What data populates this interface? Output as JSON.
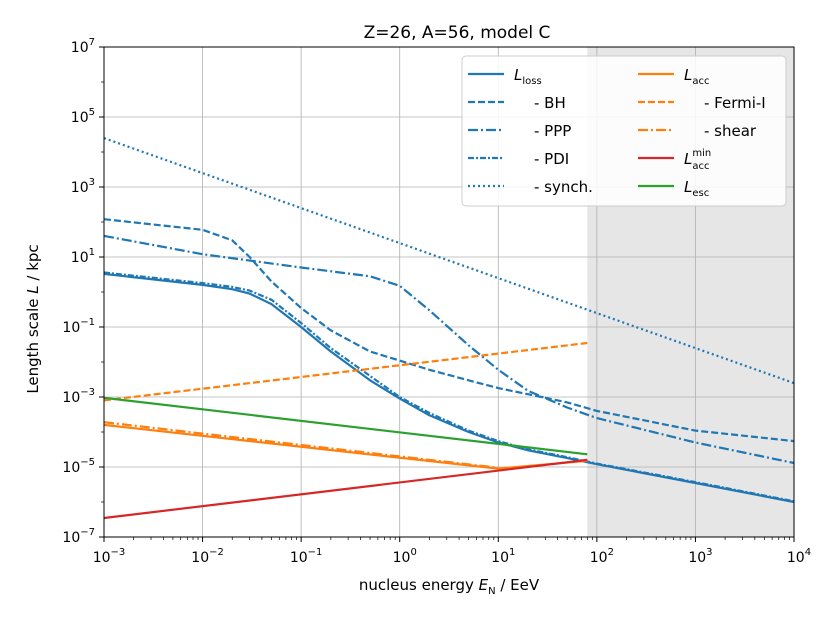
{
  "chart_data": {
    "type": "line",
    "title": "Z=26, A=56, model C",
    "xlabel": {
      "pre": "nucleus energy ",
      "var": "E",
      "sub": "N",
      "post": " / EeV"
    },
    "ylabel": {
      "pre": "Length scale ",
      "var": "L",
      "post": " / kpc"
    },
    "xscale": "log",
    "yscale": "log",
    "xlim": [
      0.001,
      10000
    ],
    "ylim": [
      1e-07,
      10000000.0
    ],
    "grid": true,
    "x_ticks": [
      {
        "value": 0.001,
        "base": "10",
        "exp": "−3"
      },
      {
        "value": 0.01,
        "base": "10",
        "exp": "−2"
      },
      {
        "value": 0.1,
        "base": "10",
        "exp": "−1"
      },
      {
        "value": 1,
        "base": "10",
        "exp": "0"
      },
      {
        "value": 10,
        "base": "10",
        "exp": "1"
      },
      {
        "value": 100,
        "base": "10",
        "exp": "2"
      },
      {
        "value": 1000,
        "base": "10",
        "exp": "3"
      },
      {
        "value": 10000,
        "base": "10",
        "exp": "4"
      }
    ],
    "y_ticks": [
      {
        "value": 1e-07,
        "base": "10",
        "exp": "−7"
      },
      {
        "value": 1e-05,
        "base": "10",
        "exp": "−5"
      },
      {
        "value": 0.001,
        "base": "10",
        "exp": "−3"
      },
      {
        "value": 0.1,
        "base": "10",
        "exp": "−1"
      },
      {
        "value": 10,
        "base": "10",
        "exp": "1"
      },
      {
        "value": 1000,
        "base": "10",
        "exp": "3"
      },
      {
        "value": 100000,
        "base": "10",
        "exp": "5"
      },
      {
        "value": 10000000,
        "base": "10",
        "exp": "7"
      }
    ],
    "shaded_region": {
      "x": [
        80,
        10000
      ],
      "color": "#e6e6e6"
    },
    "legend_position": "top-right",
    "series": [
      {
        "id": "loss",
        "label": "L",
        "sub": "loss",
        "color": "#1f77b4",
        "dash": "solid",
        "x": [
          0.001,
          0.01,
          0.02,
          0.03,
          0.05,
          0.1,
          0.2,
          0.5,
          1,
          2,
          5,
          10,
          20,
          50,
          100,
          1000,
          10000
        ],
        "y": [
          3.3,
          1.6,
          1.2,
          0.9,
          0.45,
          0.1,
          0.02,
          0.003,
          0.0009,
          0.0003,
          0.0001,
          5e-05,
          3e-05,
          1.8e-05,
          1.2e-05,
          3.5e-06,
          1e-06
        ]
      },
      {
        "id": "bh",
        "label": "- BH",
        "color": "#1f77b4",
        "dash": "dashed",
        "x": [
          0.001,
          0.01,
          0.02,
          0.03,
          0.05,
          0.1,
          0.2,
          0.5,
          1,
          2,
          5,
          10,
          20,
          50,
          100,
          1000,
          10000
        ],
        "y": [
          120,
          60,
          30,
          10,
          2,
          0.35,
          0.08,
          0.02,
          0.011,
          0.006,
          0.003,
          0.0018,
          0.0012,
          0.0007,
          0.0004,
          0.00011,
          5.5e-05
        ]
      },
      {
        "id": "ppp",
        "label": "- PPP",
        "color": "#1f77b4",
        "dash": "dashdot",
        "x": [
          0.001,
          0.01,
          0.1,
          0.5,
          1,
          2,
          5,
          10,
          20,
          50,
          100,
          1000,
          10000
        ],
        "y": [
          40,
          12,
          5,
          2.8,
          1.5,
          0.3,
          0.03,
          0.006,
          0.0015,
          0.0005,
          0.00025,
          5e-05,
          1.3e-05
        ]
      },
      {
        "id": "pdi",
        "label": "- PDI",
        "color": "#1f77b4",
        "dash": "dashdotdense",
        "x": [
          0.001,
          0.01,
          0.02,
          0.03,
          0.05,
          0.1,
          0.2,
          0.5,
          1,
          2,
          5,
          10,
          20,
          50,
          100,
          1000,
          10000
        ],
        "y": [
          3.6,
          1.8,
          1.4,
          1.1,
          0.6,
          0.13,
          0.025,
          0.004,
          0.001,
          0.00035,
          0.00011,
          5.5e-05,
          3.2e-05,
          1.9e-05,
          1.25e-05,
          3.7e-06,
          1.05e-06
        ]
      },
      {
        "id": "synch",
        "label": "- synch.",
        "color": "#1f77b4",
        "dash": "dotted",
        "x": [
          0.001,
          10000
        ],
        "y": [
          25000,
          0.0025
        ]
      },
      {
        "id": "acc",
        "label": "L",
        "sub": "acc",
        "color": "#ff7f0e",
        "dash": "solid",
        "x": [
          0.001,
          10,
          80
        ],
        "y": [
          0.00016,
          9e-06,
          1.5e-05
        ]
      },
      {
        "id": "fermi",
        "label": "- Fermi-I",
        "color": "#ff7f0e",
        "dash": "dashed",
        "x": [
          0.001,
          80
        ],
        "y": [
          0.0008,
          0.035
        ]
      },
      {
        "id": "shear",
        "label": "- shear",
        "color": "#ff7f0e",
        "dash": "dashdot",
        "x": [
          0.001,
          10
        ],
        "y": [
          0.00019,
          9.5e-06
        ]
      },
      {
        "id": "accmin",
        "label": "L",
        "sub": "acc",
        "sup": "min",
        "color": "#d62728",
        "dash": "solid",
        "x": [
          0.001,
          80
        ],
        "y": [
          3.5e-07,
          1.6e-05
        ]
      },
      {
        "id": "esc",
        "label": "L",
        "sub": "esc",
        "color": "#2ca02c",
        "dash": "solid",
        "x": [
          0.001,
          80
        ],
        "y": [
          0.00095,
          2.3e-05
        ]
      }
    ],
    "legend_columns": [
      [
        "loss",
        "bh",
        "ppp",
        "pdi",
        "synch"
      ],
      [
        "acc",
        "fermi",
        "shear",
        "accmin",
        "esc"
      ]
    ]
  }
}
